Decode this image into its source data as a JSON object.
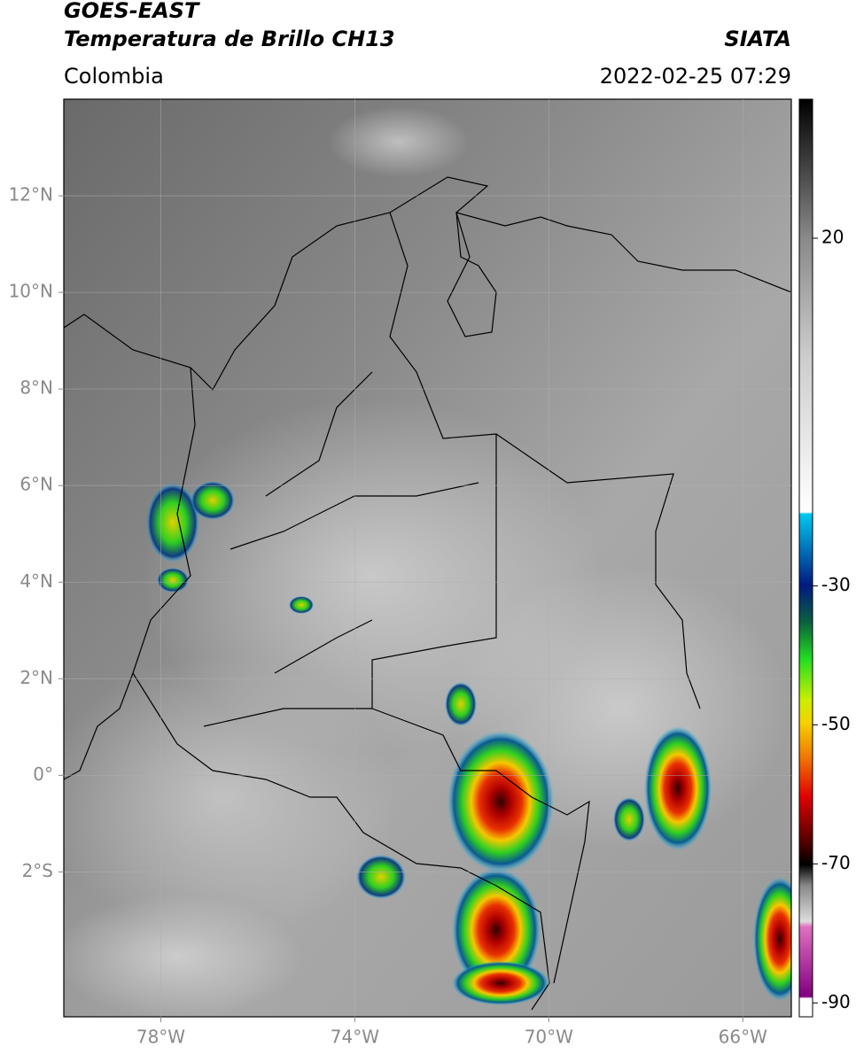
{
  "header": {
    "title": "GOES-EAST",
    "subtitle": "Temperatura de Brillo CH13",
    "region": "Colombia",
    "agency": "SIATA",
    "datetime": "2022-02-25 07:29"
  },
  "map": {
    "xlim": [
      -80,
      -65
    ],
    "ylim": [
      -5,
      14
    ],
    "xticks": [
      {
        "value": -78,
        "label": "78°W"
      },
      {
        "value": -74,
        "label": "74°W"
      },
      {
        "value": -70,
        "label": "70°W"
      },
      {
        "value": -66,
        "label": "66°W"
      }
    ],
    "yticks": [
      {
        "value": -2,
        "label": "2°S"
      },
      {
        "value": 0,
        "label": "0°"
      },
      {
        "value": 2,
        "label": "2°N"
      },
      {
        "value": 4,
        "label": "4°N"
      },
      {
        "value": 6,
        "label": "6°N"
      },
      {
        "value": 8,
        "label": "8°N"
      },
      {
        "value": 10,
        "label": "10°N"
      },
      {
        "value": 12,
        "label": "12°N"
      }
    ]
  },
  "colorbar": {
    "lim": [
      -92,
      40
    ],
    "ticks": [
      20,
      -30,
      -50,
      -70,
      -90
    ]
  }
}
